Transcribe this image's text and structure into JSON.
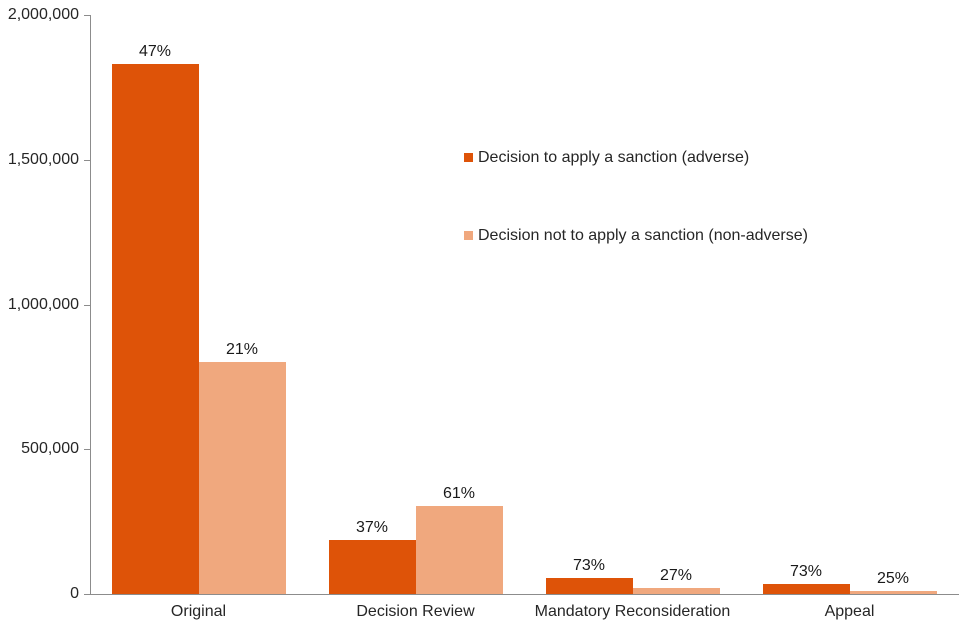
{
  "chart_data": {
    "type": "bar",
    "title": "",
    "categories": [
      "Original",
      "Decision Review",
      "Mandatory Reconsideration",
      "Appeal"
    ],
    "series": [
      {
        "name": "Decision to apply a sanction (adverse)",
        "color": "#DE5308",
        "values": [
          1830000,
          185000,
          55000,
          35000
        ],
        "data_labels": [
          "47%",
          "37%",
          "73%",
          "73%"
        ]
      },
      {
        "name": "Decision not to apply a sanction (non-adverse)",
        "color": "#F0A87E",
        "values": [
          800000,
          305000,
          20000,
          10000
        ],
        "data_labels": [
          "21%",
          "61%",
          "27%",
          "25%"
        ]
      }
    ],
    "y_axis": {
      "min": 0,
      "max": 2000000,
      "tick_interval": 500000,
      "tick_labels": [
        "0",
        "500,000",
        "1,000,000",
        "1,500,000",
        "2,000,000"
      ]
    },
    "x_axis": {
      "label": ""
    },
    "legend": {
      "position": "inside-upper-middle"
    },
    "grid": "off",
    "colors": {
      "axis": "#8c8c8c",
      "text": "#262626",
      "background": "#ffffff"
    }
  }
}
